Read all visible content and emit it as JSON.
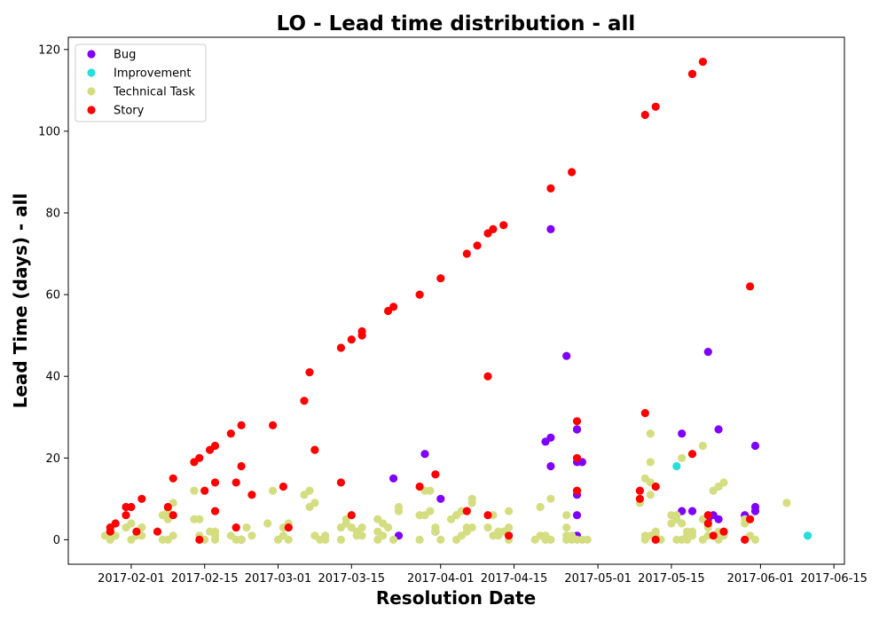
{
  "chart_data": {
    "type": "scatter",
    "title": "LO - Lead time distribution - all",
    "xlabel": "Resolution Date",
    "ylabel": "Lead Time (days) - all",
    "xlim": [
      "2017-01-20",
      "2017-06-17"
    ],
    "ylim": [
      -6,
      123
    ],
    "x_ticks": [
      "2017-02-01",
      "2017-02-15",
      "2017-03-01",
      "2017-03-15",
      "2017-04-01",
      "2017-04-15",
      "2017-05-01",
      "2017-05-15",
      "2017-06-01",
      "2017-06-15"
    ],
    "y_ticks": [
      0,
      20,
      40,
      60,
      80,
      100,
      120
    ],
    "grid": false,
    "legend_position": "top-left",
    "series": [
      {
        "name": "Bug",
        "color": "#8000ff",
        "points": [
          [
            "2017-02-22",
            0
          ],
          [
            "2017-03-23",
            15
          ],
          [
            "2017-03-24",
            1
          ],
          [
            "2017-03-29",
            21
          ],
          [
            "2017-03-31",
            2
          ],
          [
            "2017-04-01",
            10
          ],
          [
            "2017-04-21",
            24
          ],
          [
            "2017-04-22",
            76
          ],
          [
            "2017-04-22",
            25
          ],
          [
            "2017-04-22",
            18
          ],
          [
            "2017-04-25",
            45
          ],
          [
            "2017-04-27",
            11
          ],
          [
            "2017-04-27",
            27
          ],
          [
            "2017-04-27",
            6
          ],
          [
            "2017-04-27",
            27
          ],
          [
            "2017-04-27",
            19
          ],
          [
            "2017-04-28",
            19
          ],
          [
            "2017-04-27",
            1
          ],
          [
            "2017-05-17",
            26
          ],
          [
            "2017-05-17",
            7
          ],
          [
            "2017-05-19",
            7
          ],
          [
            "2017-05-22",
            46
          ],
          [
            "2017-05-22",
            5
          ],
          [
            "2017-05-23",
            6
          ],
          [
            "2017-05-24",
            27
          ],
          [
            "2017-05-24",
            5
          ],
          [
            "2017-05-29",
            6
          ],
          [
            "2017-05-31",
            7
          ],
          [
            "2017-05-31",
            8
          ],
          [
            "2017-05-31",
            23
          ]
        ]
      },
      {
        "name": "Improvement",
        "color": "#2adddd",
        "points": [
          [
            "2017-05-16",
            18
          ],
          [
            "2017-06-10",
            1
          ],
          [
            "2017-06-10",
            1
          ]
        ]
      },
      {
        "name": "Technical Task",
        "color": "#d4dd80",
        "points": [
          [
            "2017-01-27",
            1
          ],
          [
            "2017-01-28",
            1
          ],
          [
            "2017-01-28",
            0
          ],
          [
            "2017-01-29",
            1
          ],
          [
            "2017-01-31",
            3
          ],
          [
            "2017-02-01",
            4
          ],
          [
            "2017-02-01",
            0
          ],
          [
            "2017-02-02",
            1
          ],
          [
            "2017-02-02",
            2
          ],
          [
            "2017-02-03",
            3
          ],
          [
            "2017-02-03",
            1
          ],
          [
            "2017-02-07",
            6
          ],
          [
            "2017-02-07",
            0
          ],
          [
            "2017-02-08",
            7
          ],
          [
            "2017-02-08",
            5
          ],
          [
            "2017-02-09",
            9
          ],
          [
            "2017-02-09",
            1
          ],
          [
            "2017-02-08",
            0
          ],
          [
            "2017-02-13",
            12
          ],
          [
            "2017-02-13",
            5
          ],
          [
            "2017-02-14",
            5
          ],
          [
            "2017-02-14",
            1
          ],
          [
            "2017-02-15",
            0
          ],
          [
            "2017-02-16",
            2
          ],
          [
            "2017-02-17",
            2
          ],
          [
            "2017-02-17",
            1
          ],
          [
            "2017-02-17",
            0
          ],
          [
            "2017-02-20",
            1
          ],
          [
            "2017-02-21",
            0
          ],
          [
            "2017-02-22",
            0
          ],
          [
            "2017-02-23",
            3
          ],
          [
            "2017-02-24",
            1
          ],
          [
            "2017-02-27",
            4
          ],
          [
            "2017-02-28",
            12
          ],
          [
            "2017-03-01",
            0
          ],
          [
            "2017-03-02",
            1
          ],
          [
            "2017-03-02",
            3
          ],
          [
            "2017-03-03",
            0
          ],
          [
            "2017-03-03",
            4
          ],
          [
            "2017-03-06",
            11
          ],
          [
            "2017-03-07",
            12
          ],
          [
            "2017-03-07",
            8
          ],
          [
            "2017-03-08",
            9
          ],
          [
            "2017-03-08",
            1
          ],
          [
            "2017-03-09",
            0
          ],
          [
            "2017-03-10",
            1
          ],
          [
            "2017-03-10",
            0
          ],
          [
            "2017-03-13",
            0
          ],
          [
            "2017-03-13",
            3
          ],
          [
            "2017-03-14",
            5
          ],
          [
            "2017-03-14",
            4
          ],
          [
            "2017-03-15",
            3
          ],
          [
            "2017-03-16",
            1
          ],
          [
            "2017-03-16",
            2
          ],
          [
            "2017-03-17",
            3
          ],
          [
            "2017-03-17",
            1
          ],
          [
            "2017-03-20",
            5
          ],
          [
            "2017-03-20",
            2
          ],
          [
            "2017-03-20",
            0
          ],
          [
            "2017-03-21",
            1
          ],
          [
            "2017-03-21",
            4
          ],
          [
            "2017-03-22",
            3
          ],
          [
            "2017-03-23",
            0
          ],
          [
            "2017-03-24",
            8
          ],
          [
            "2017-03-24",
            7
          ],
          [
            "2017-03-28",
            6
          ],
          [
            "2017-03-28",
            0
          ],
          [
            "2017-03-29",
            12
          ],
          [
            "2017-03-29",
            6
          ],
          [
            "2017-03-30",
            12
          ],
          [
            "2017-03-30",
            7
          ],
          [
            "2017-03-31",
            3
          ],
          [
            "2017-03-31",
            2
          ],
          [
            "2017-04-01",
            0
          ],
          [
            "2017-04-03",
            5
          ],
          [
            "2017-04-04",
            6
          ],
          [
            "2017-04-04",
            0
          ],
          [
            "2017-04-05",
            1
          ],
          [
            "2017-04-05",
            7
          ],
          [
            "2017-04-06",
            3
          ],
          [
            "2017-04-06",
            2
          ],
          [
            "2017-04-07",
            9
          ],
          [
            "2017-04-07",
            10
          ],
          [
            "2017-04-07",
            3
          ],
          [
            "2017-04-10",
            3
          ],
          [
            "2017-04-11",
            6
          ],
          [
            "2017-04-11",
            1
          ],
          [
            "2017-04-12",
            2
          ],
          [
            "2017-04-12",
            1
          ],
          [
            "2017-04-13",
            2
          ],
          [
            "2017-04-14",
            3
          ],
          [
            "2017-04-14",
            7
          ],
          [
            "2017-04-14",
            0
          ],
          [
            "2017-04-19",
            0
          ],
          [
            "2017-04-20",
            8
          ],
          [
            "2017-04-20",
            1
          ],
          [
            "2017-04-21",
            1
          ],
          [
            "2017-04-21",
            0
          ],
          [
            "2017-04-22",
            10
          ],
          [
            "2017-04-22",
            0
          ],
          [
            "2017-04-25",
            6
          ],
          [
            "2017-04-25",
            3
          ],
          [
            "2017-04-25",
            1
          ],
          [
            "2017-04-25",
            0
          ],
          [
            "2017-04-26",
            1
          ],
          [
            "2017-04-26",
            0
          ],
          [
            "2017-04-27",
            0
          ],
          [
            "2017-04-28",
            0
          ],
          [
            "2017-04-29",
            0
          ],
          [
            "2017-05-09",
            9
          ],
          [
            "2017-05-10",
            15
          ],
          [
            "2017-05-10",
            0
          ],
          [
            "2017-05-10",
            1
          ],
          [
            "2017-05-11",
            26
          ],
          [
            "2017-05-11",
            19
          ],
          [
            "2017-05-11",
            11
          ],
          [
            "2017-05-11",
            14
          ],
          [
            "2017-05-11",
            1
          ],
          [
            "2017-05-12",
            13
          ],
          [
            "2017-05-12",
            1
          ],
          [
            "2017-05-12",
            2
          ],
          [
            "2017-05-13",
            0
          ],
          [
            "2017-05-15",
            6
          ],
          [
            "2017-05-15",
            4
          ],
          [
            "2017-05-16",
            6
          ],
          [
            "2017-05-16",
            0
          ],
          [
            "2017-05-16",
            5
          ],
          [
            "2017-05-17",
            20
          ],
          [
            "2017-05-17",
            4
          ],
          [
            "2017-05-17",
            0
          ],
          [
            "2017-05-18",
            2
          ],
          [
            "2017-05-18",
            1
          ],
          [
            "2017-05-18",
            0
          ],
          [
            "2017-05-19",
            2
          ],
          [
            "2017-05-19",
            1
          ],
          [
            "2017-05-21",
            23
          ],
          [
            "2017-05-21",
            5
          ],
          [
            "2017-05-21",
            0
          ],
          [
            "2017-05-22",
            3
          ],
          [
            "2017-05-22",
            1
          ],
          [
            "2017-05-23",
            12
          ],
          [
            "2017-05-24",
            13
          ],
          [
            "2017-05-24",
            2
          ],
          [
            "2017-05-24",
            0
          ],
          [
            "2017-05-25",
            14
          ],
          [
            "2017-05-25",
            1
          ],
          [
            "2017-05-29",
            5
          ],
          [
            "2017-05-29",
            4
          ],
          [
            "2017-05-30",
            1
          ],
          [
            "2017-05-31",
            0
          ],
          [
            "2017-06-06",
            9
          ]
        ]
      },
      {
        "name": "Story",
        "color": "#ff0000",
        "points": [
          [
            "2017-01-28",
            2
          ],
          [
            "2017-01-28",
            3
          ],
          [
            "2017-01-29",
            4
          ],
          [
            "2017-01-31",
            8
          ],
          [
            "2017-01-31",
            6
          ],
          [
            "2017-02-01",
            8
          ],
          [
            "2017-02-02",
            2
          ],
          [
            "2017-02-03",
            10
          ],
          [
            "2017-02-06",
            2
          ],
          [
            "2017-02-08",
            8
          ],
          [
            "2017-02-09",
            15
          ],
          [
            "2017-02-09",
            6
          ],
          [
            "2017-02-13",
            19
          ],
          [
            "2017-02-14",
            20
          ],
          [
            "2017-02-14",
            0
          ],
          [
            "2017-02-15",
            12
          ],
          [
            "2017-02-16",
            22
          ],
          [
            "2017-02-17",
            23
          ],
          [
            "2017-02-17",
            14
          ],
          [
            "2017-02-17",
            7
          ],
          [
            "2017-02-20",
            26
          ],
          [
            "2017-02-21",
            3
          ],
          [
            "2017-02-21",
            14
          ],
          [
            "2017-02-22",
            28
          ],
          [
            "2017-02-22",
            18
          ],
          [
            "2017-02-24",
            11
          ],
          [
            "2017-02-28",
            28
          ],
          [
            "2017-03-02",
            13
          ],
          [
            "2017-03-03",
            3
          ],
          [
            "2017-03-06",
            34
          ],
          [
            "2017-03-07",
            41
          ],
          [
            "2017-03-08",
            22
          ],
          [
            "2017-03-13",
            47
          ],
          [
            "2017-03-13",
            14
          ],
          [
            "2017-03-15",
            49
          ],
          [
            "2017-03-15",
            6
          ],
          [
            "2017-03-17",
            50
          ],
          [
            "2017-03-17",
            51
          ],
          [
            "2017-03-22",
            56
          ],
          [
            "2017-03-23",
            57
          ],
          [
            "2017-03-28",
            60
          ],
          [
            "2017-03-28",
            13
          ],
          [
            "2017-03-31",
            16
          ],
          [
            "2017-04-01",
            64
          ],
          [
            "2017-04-06",
            70
          ],
          [
            "2017-04-06",
            7
          ],
          [
            "2017-04-08",
            72
          ],
          [
            "2017-04-10",
            75
          ],
          [
            "2017-04-10",
            40
          ],
          [
            "2017-04-10",
            6
          ],
          [
            "2017-04-11",
            76
          ],
          [
            "2017-04-13",
            77
          ],
          [
            "2017-04-14",
            1
          ],
          [
            "2017-04-22",
            86
          ],
          [
            "2017-04-26",
            90
          ],
          [
            "2017-04-27",
            29
          ],
          [
            "2017-04-27",
            20
          ],
          [
            "2017-04-27",
            12
          ],
          [
            "2017-05-09",
            12
          ],
          [
            "2017-05-09",
            10
          ],
          [
            "2017-05-10",
            104
          ],
          [
            "2017-05-10",
            31
          ],
          [
            "2017-05-12",
            106
          ],
          [
            "2017-05-12",
            13
          ],
          [
            "2017-05-12",
            0
          ],
          [
            "2017-05-19",
            114
          ],
          [
            "2017-05-19",
            114
          ],
          [
            "2017-05-19",
            21
          ],
          [
            "2017-05-21",
            117
          ],
          [
            "2017-05-22",
            4
          ],
          [
            "2017-05-22",
            6
          ],
          [
            "2017-05-23",
            1
          ],
          [
            "2017-05-25",
            2
          ],
          [
            "2017-05-29",
            0
          ],
          [
            "2017-05-30",
            62
          ],
          [
            "2017-05-30",
            5
          ]
        ]
      }
    ]
  }
}
